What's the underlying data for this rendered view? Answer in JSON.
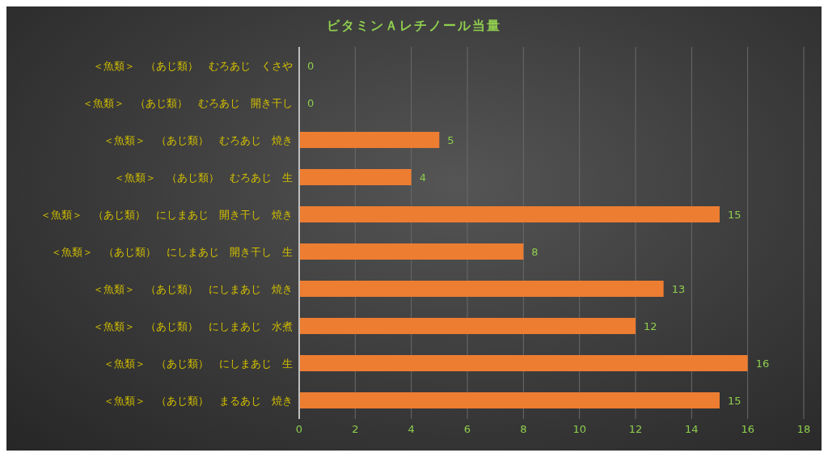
{
  "chart_data": {
    "type": "bar",
    "orientation": "horizontal",
    "title": "ビタミンＡレチノール当量",
    "categories": [
      "＜魚類＞　（あじ類）　むろあじ　くさや",
      "＜魚類＞　（あじ類）　むろあじ　開き干し",
      "＜魚類＞　（あじ類）　むろあじ　焼き",
      "＜魚類＞　（あじ類）　むろあじ　生",
      "＜魚類＞　（あじ類）　にしまあじ　開き干し　焼き",
      "＜魚類＞　（あじ類）　にしまあじ　開き干し　生",
      "＜魚類＞　（あじ類）　にしまあじ　焼き",
      "＜魚類＞　（あじ類）　にしまあじ　水煮",
      "＜魚類＞　（あじ類）　にしまあじ　生",
      "＜魚類＞　（あじ類）　まるあじ　焼き"
    ],
    "values": [
      0,
      0,
      5,
      4,
      15,
      8,
      13,
      12,
      16,
      15
    ],
    "color": "#ed7d31",
    "xlim": [
      0,
      18
    ],
    "xticks": [
      0,
      2,
      4,
      6,
      8,
      10,
      12,
      14,
      16,
      18
    ],
    "grid": "x",
    "data_labels": true
  }
}
